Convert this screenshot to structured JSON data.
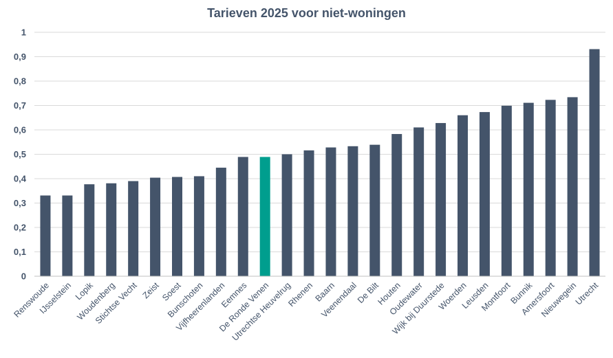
{
  "chart_data": {
    "type": "bar",
    "title": "Tarieven 2025 voor niet-woningen",
    "xlabel": "",
    "ylabel": "",
    "ylim": [
      0,
      1
    ],
    "yticks": [
      "0",
      "0,1",
      "0,2",
      "0,3",
      "0,4",
      "0,5",
      "0,6",
      "0,7",
      "0,8",
      "0,9",
      "1"
    ],
    "grid": true,
    "legend": "none",
    "bar_color": "#44546a",
    "highlight_color": "#009e8e",
    "highlight_category": "De Ronde Venen",
    "categories": [
      "Renswoude",
      "IJsselstein",
      "Lopik",
      "Woudenberg",
      "Stichtse Vecht",
      "Zeist",
      "Soest",
      "Bunschoten",
      "Vijfheerenlanden",
      "Eemnes",
      "De Ronde Venen",
      "Utrechtse Heuvelrug",
      "Rhenen",
      "Baarn",
      "Veenendaal",
      "De Bilt",
      "Houten",
      "Oudewater",
      "Wijk bij Duurstede",
      "Woerden",
      "Leusden",
      "Montfoort",
      "Bunnik",
      "Amersfoort",
      "Nieuwegein",
      "Utrecht"
    ],
    "values": [
      0.331,
      0.331,
      0.377,
      0.381,
      0.39,
      0.404,
      0.407,
      0.41,
      0.445,
      0.489,
      0.489,
      0.5,
      0.516,
      0.528,
      0.533,
      0.539,
      0.583,
      0.61,
      0.628,
      0.66,
      0.673,
      0.699,
      0.711,
      0.723,
      0.734,
      0.931
    ]
  }
}
